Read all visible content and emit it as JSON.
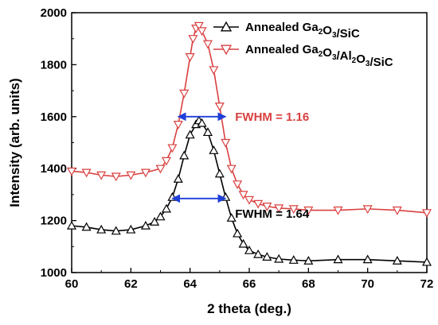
{
  "chart_data": {
    "type": "scatter",
    "title": "",
    "xlabel": "2 theta (deg.)",
    "ylabel": "Intensity (arb. units)",
    "xlim": [
      60,
      72
    ],
    "ylim": [
      1000,
      2000
    ],
    "xticks": [
      60,
      62,
      64,
      66,
      68,
      70,
      72
    ],
    "yticks": [
      1000,
      1200,
      1400,
      1600,
      1800,
      2000
    ],
    "grid": false,
    "legend_position": "top-right",
    "series": [
      {
        "name": "Annealed Ga2O3/SiC",
        "legend_parts": [
          {
            "t": "Annealed Ga",
            "sub": false
          },
          {
            "t": "2",
            "sub": true
          },
          {
            "t": "O",
            "sub": false
          },
          {
            "t": "3",
            "sub": true
          },
          {
            "t": "/SiC",
            "sub": false
          }
        ],
        "color": "#000000",
        "marker": "triangle-up",
        "x": [
          60.0,
          60.5,
          61.0,
          61.5,
          62.0,
          62.5,
          62.8,
          63.0,
          63.2,
          63.4,
          63.6,
          63.8,
          64.0,
          64.2,
          64.3,
          64.4,
          64.6,
          64.8,
          65.0,
          65.2,
          65.4,
          65.6,
          65.8,
          66.0,
          66.3,
          66.6,
          67.0,
          67.5,
          68.0,
          69.0,
          70.0,
          71.0,
          72.0
        ],
        "y": [
          1180,
          1175,
          1165,
          1160,
          1165,
          1180,
          1195,
          1215,
          1245,
          1290,
          1360,
          1450,
          1530,
          1570,
          1585,
          1575,
          1540,
          1470,
          1380,
          1290,
          1210,
          1150,
          1110,
          1085,
          1070,
          1060,
          1052,
          1048,
          1045,
          1050,
          1050,
          1045,
          1040
        ]
      },
      {
        "name": "Annealed Ga2O3/Al2O3/SiC",
        "legend_parts": [
          {
            "t": "Annealed Ga",
            "sub": false
          },
          {
            "t": "2",
            "sub": true
          },
          {
            "t": "O",
            "sub": false
          },
          {
            "t": "3",
            "sub": true
          },
          {
            "t": "/Al",
            "sub": false
          },
          {
            "t": "2",
            "sub": true
          },
          {
            "t": "O",
            "sub": false
          },
          {
            "t": "3",
            "sub": true
          },
          {
            "t": "/SiC",
            "sub": false
          }
        ],
        "color": "#d94040",
        "marker": "triangle-down",
        "x": [
          60.0,
          60.5,
          61.0,
          61.5,
          62.0,
          62.5,
          63.0,
          63.2,
          63.4,
          63.6,
          63.8,
          64.0,
          64.1,
          64.2,
          64.3,
          64.4,
          64.6,
          64.8,
          65.0,
          65.2,
          65.4,
          65.6,
          65.8,
          66.0,
          66.3,
          66.6,
          67.0,
          67.5,
          68.0,
          69.0,
          70.0,
          71.0,
          72.0
        ],
        "y": [
          1390,
          1385,
          1375,
          1370,
          1375,
          1385,
          1400,
          1430,
          1480,
          1570,
          1690,
          1830,
          1900,
          1940,
          1950,
          1930,
          1880,
          1780,
          1640,
          1500,
          1400,
          1340,
          1300,
          1280,
          1265,
          1255,
          1248,
          1245,
          1240,
          1240,
          1245,
          1240,
          1230
        ]
      }
    ],
    "annotations": [
      {
        "name": "fwhm-red",
        "text": "FWHM = 1.16",
        "x1": 63.6,
        "x2": 65.2,
        "y": 1600,
        "color": "#d94040"
      },
      {
        "name": "fwhm-black",
        "text": "FWHM = 1.64",
        "x1": 63.4,
        "x2": 65.2,
        "y": 1285,
        "color": "#000000"
      }
    ]
  }
}
